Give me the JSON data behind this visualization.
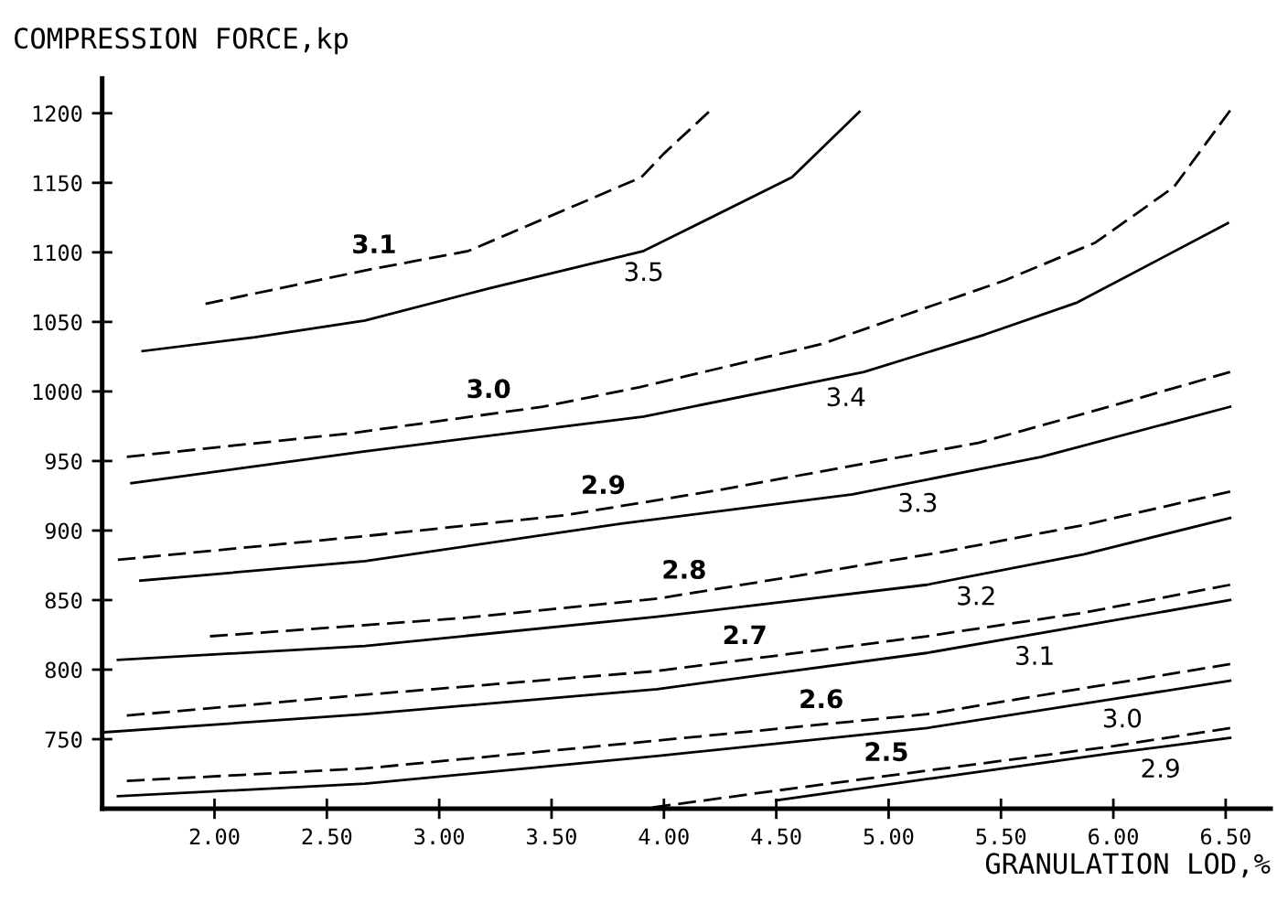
{
  "chart_data": {
    "type": "line",
    "xlabel": "GRANULATION LOD,%",
    "ylabel": "COMPRESSION FORCE,kp",
    "xlim": [
      1.5,
      6.7
    ],
    "ylim": [
      700,
      1225
    ],
    "xticks": [
      {
        "value": 2,
        "label": "2.00"
      },
      {
        "value": 2.5,
        "label": "2.50"
      },
      {
        "value": 3,
        "label": "3.00"
      },
      {
        "value": 3.5,
        "label": "3.50"
      },
      {
        "value": 4,
        "label": "4.00"
      },
      {
        "value": 4.5,
        "label": "4.50"
      },
      {
        "value": 5,
        "label": "5.00"
      },
      {
        "value": 5.5,
        "label": "5.50"
      },
      {
        "value": 6,
        "label": "6.00"
      },
      {
        "value": 6.5,
        "label": "6.50"
      }
    ],
    "yticks": [
      750,
      800,
      850,
      900,
      950,
      1000,
      1050,
      1100,
      1150,
      1200
    ],
    "grid": false,
    "marker": "none",
    "series": [
      {
        "color": "#000000",
        "line_style": "solid",
        "x": [
          1.68,
          2.18,
          2.67,
          3.22,
          3.91,
          4.57,
          4.87
        ],
        "values": [
          1029,
          1039,
          1051,
          1074,
          1101,
          1154,
          1201
        ]
      },
      {
        "color": "#000000",
        "line_style": "dashed",
        "x": [
          1.96,
          2.67,
          3.13,
          3.9,
          4.0,
          4.2
        ],
        "values": [
          1063,
          1087,
          1101,
          1154,
          1171,
          1201
        ]
      },
      {
        "color": "#000000",
        "line_style": "dashed",
        "x": [
          1.61,
          2.61,
          3.46,
          3.89,
          4.7,
          5.52,
          5.92,
          6.27,
          6.52
        ],
        "values": [
          953,
          970,
          989,
          1003,
          1034,
          1080,
          1107,
          1147,
          1202
        ]
      },
      {
        "color": "#000000",
        "line_style": "solid",
        "x": [
          1.63,
          2.67,
          3.91,
          4.89,
          5.43,
          5.84,
          6.51
        ],
        "values": [
          934,
          957,
          982,
          1014,
          1041,
          1064,
          1121
        ]
      },
      {
        "color": "#000000",
        "line_style": "dashed",
        "x": [
          1.57,
          2.67,
          3.56,
          4.24,
          5.4,
          5.98,
          6.52
        ],
        "values": [
          879,
          896,
          911,
          929,
          963,
          989,
          1014
        ]
      },
      {
        "color": "#000000",
        "line_style": "solid",
        "x": [
          1.67,
          2.67,
          3.81,
          4.84,
          5.68,
          6.52
        ],
        "values": [
          864,
          878,
          905,
          926,
          953,
          989
        ]
      },
      {
        "color": "#000000",
        "line_style": "dashed",
        "x": [
          1.98,
          3.1,
          3.97,
          5.22,
          5.87,
          6.52
        ],
        "values": [
          824,
          837,
          851,
          884,
          904,
          928
        ]
      },
      {
        "color": "#000000",
        "line_style": "solid",
        "x": [
          1.57,
          2.67,
          3.97,
          5.17,
          5.87,
          6.52
        ],
        "values": [
          807,
          817,
          838,
          861,
          883,
          909
        ]
      },
      {
        "color": "#000000",
        "line_style": "dashed",
        "x": [
          1.61,
          2.67,
          3.97,
          5.17,
          5.87,
          6.52
        ],
        "values": [
          767,
          782,
          799,
          824,
          841,
          861
        ]
      },
      {
        "color": "#000000",
        "line_style": "solid",
        "x": [
          1.51,
          2.67,
          3.97,
          5.17,
          6.52
        ],
        "values": [
          755,
          768,
          786,
          812,
          850
        ]
      },
      {
        "color": "#000000",
        "line_style": "dashed",
        "x": [
          1.61,
          2.67,
          3.97,
          5.17,
          6.52
        ],
        "values": [
          720,
          729,
          749,
          768,
          804
        ]
      },
      {
        "color": "#000000",
        "line_style": "solid",
        "x": [
          1.57,
          2.67,
          3.97,
          5.17,
          6.52
        ],
        "values": [
          709,
          718,
          738,
          758,
          792
        ]
      },
      {
        "color": "#000000",
        "line_style": "dashed",
        "x": [
          3.95,
          4.5,
          5.2,
          6.0,
          6.52
        ],
        "values": [
          701,
          713,
          728,
          745,
          758
        ]
      },
      {
        "color": "#000000",
        "line_style": "solid",
        "x": [
          4.5,
          5.2,
          6.0,
          6.52
        ],
        "values": [
          706,
          722,
          740,
          751
        ]
      }
    ],
    "annotations": [
      {
        "text": "3.1",
        "x": 2.71,
        "y": 1088
      },
      {
        "text": "3.5",
        "x": 3.91,
        "y": 1101
      },
      {
        "text": "3.0",
        "x": 3.22,
        "y": 984
      },
      {
        "text": "3.4",
        "x": 4.81,
        "y": 1011
      },
      {
        "text": "2.9",
        "x": 3.73,
        "y": 915
      },
      {
        "text": "3.3",
        "x": 5.13,
        "y": 935
      },
      {
        "text": "2.8",
        "x": 4.09,
        "y": 854
      },
      {
        "text": "3.2",
        "x": 5.39,
        "y": 868
      },
      {
        "text": "2.7",
        "x": 4.36,
        "y": 807
      },
      {
        "text": "3.1",
        "x": 5.65,
        "y": 825
      },
      {
        "text": "2.6",
        "x": 4.7,
        "y": 761
      },
      {
        "text": "3.0",
        "x": 6.04,
        "y": 780
      },
      {
        "text": "2.5",
        "x": 4.99,
        "y": 723
      },
      {
        "text": "2.9",
        "x": 6.21,
        "y": 744
      }
    ]
  }
}
